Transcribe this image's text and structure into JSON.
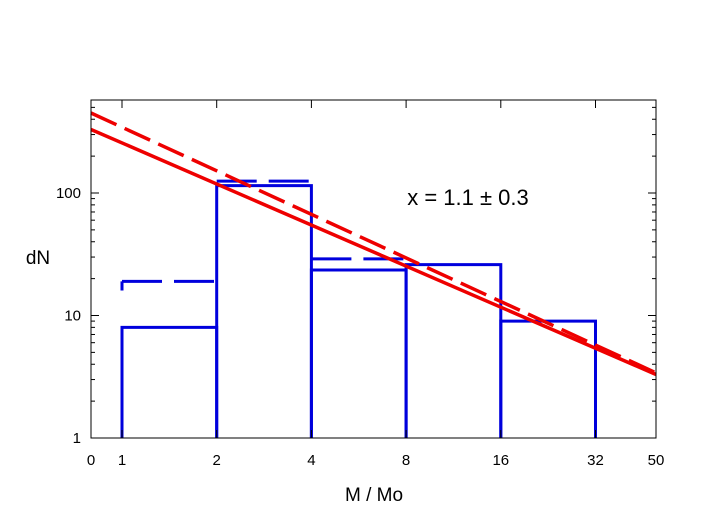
{
  "chart_data": {
    "type": "bar",
    "title": "",
    "xlabel": "M / Mo",
    "ylabel": "dN",
    "y_scale": "log",
    "ylim": [
      1,
      560
    ],
    "x_scale": "log2",
    "xlim": [
      0.5,
      50
    ],
    "x_ticks": [
      {
        "value": 0.5,
        "label": "0"
      },
      {
        "value": 1,
        "label": "1"
      },
      {
        "value": 2,
        "label": "2"
      },
      {
        "value": 4,
        "label": "4"
      },
      {
        "value": 8,
        "label": "8"
      },
      {
        "value": 16,
        "label": "16"
      },
      {
        "value": 32,
        "label": "32"
      },
      {
        "value": 50,
        "label": "50"
      }
    ],
    "y_ticks": [
      {
        "value": 1,
        "label": "1"
      },
      {
        "value": 10,
        "label": "10"
      },
      {
        "value": 100,
        "label": "100"
      }
    ],
    "annotation": "x = 1.1 ± 0.3",
    "grid": false,
    "colors": {
      "histogram": "#0000dd",
      "fit": "#ee0000"
    },
    "series": [
      {
        "style": "solid",
        "kind": "histogram",
        "bins": [
          {
            "x0": 1,
            "x1": 2,
            "value": 8
          },
          {
            "x0": 2,
            "x1": 4,
            "value": 115
          },
          {
            "x0": 4,
            "x1": 8,
            "value": 23.5
          },
          {
            "x0": 8,
            "x1": 16,
            "value": 26
          },
          {
            "x0": 16,
            "x1": 32,
            "value": 9
          }
        ]
      },
      {
        "style": "dashed",
        "kind": "histogram",
        "bins": [
          {
            "x0": 1,
            "x1": 2,
            "value": 19,
            "left_edge_low": 16
          },
          {
            "x0": 2,
            "x1": 4,
            "value": 125
          },
          {
            "x0": 4,
            "x1": 8,
            "value": 29
          }
        ]
      },
      {
        "style": "solid",
        "kind": "fit-line",
        "points": [
          {
            "x": 0.5,
            "y": 330
          },
          {
            "x": 50,
            "y": 3.3
          }
        ]
      },
      {
        "style": "dashed",
        "kind": "fit-line",
        "points": [
          {
            "x": 0.5,
            "y": 450
          },
          {
            "x": 50,
            "y": 3.4
          }
        ]
      }
    ]
  }
}
